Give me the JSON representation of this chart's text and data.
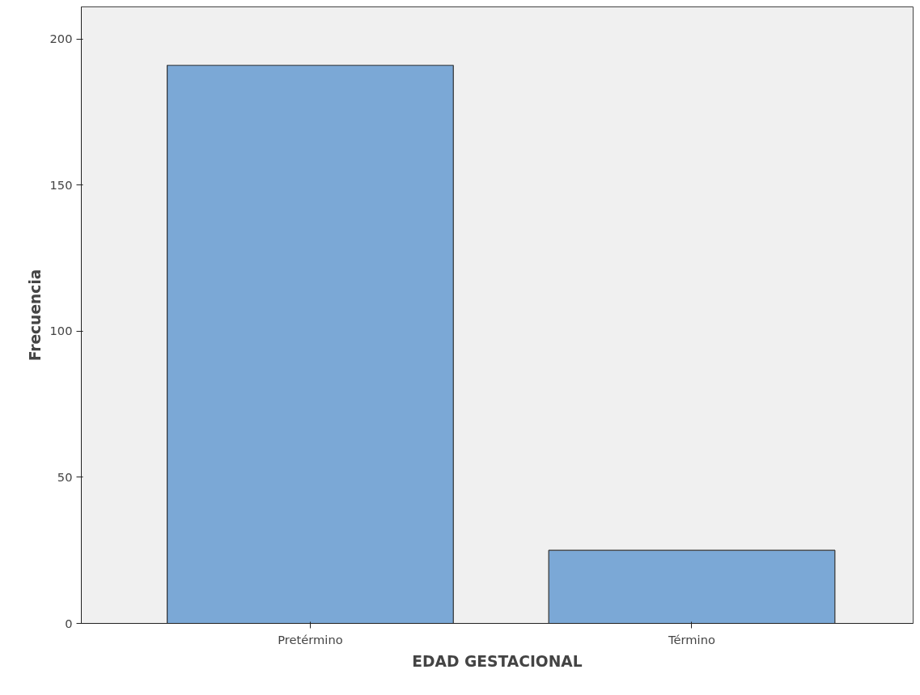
{
  "chart_data": {
    "type": "bar",
    "xlabel": "EDAD GESTACIONAL",
    "ylabel": "Frecuencia",
    "categories": [
      "Pretérmino",
      "Término"
    ],
    "values": [
      191,
      25
    ],
    "color": "#7ba8d6",
    "ylim": [
      0,
      211
    ],
    "yticks": [
      0,
      50,
      100,
      150,
      200
    ],
    "grid": false
  }
}
